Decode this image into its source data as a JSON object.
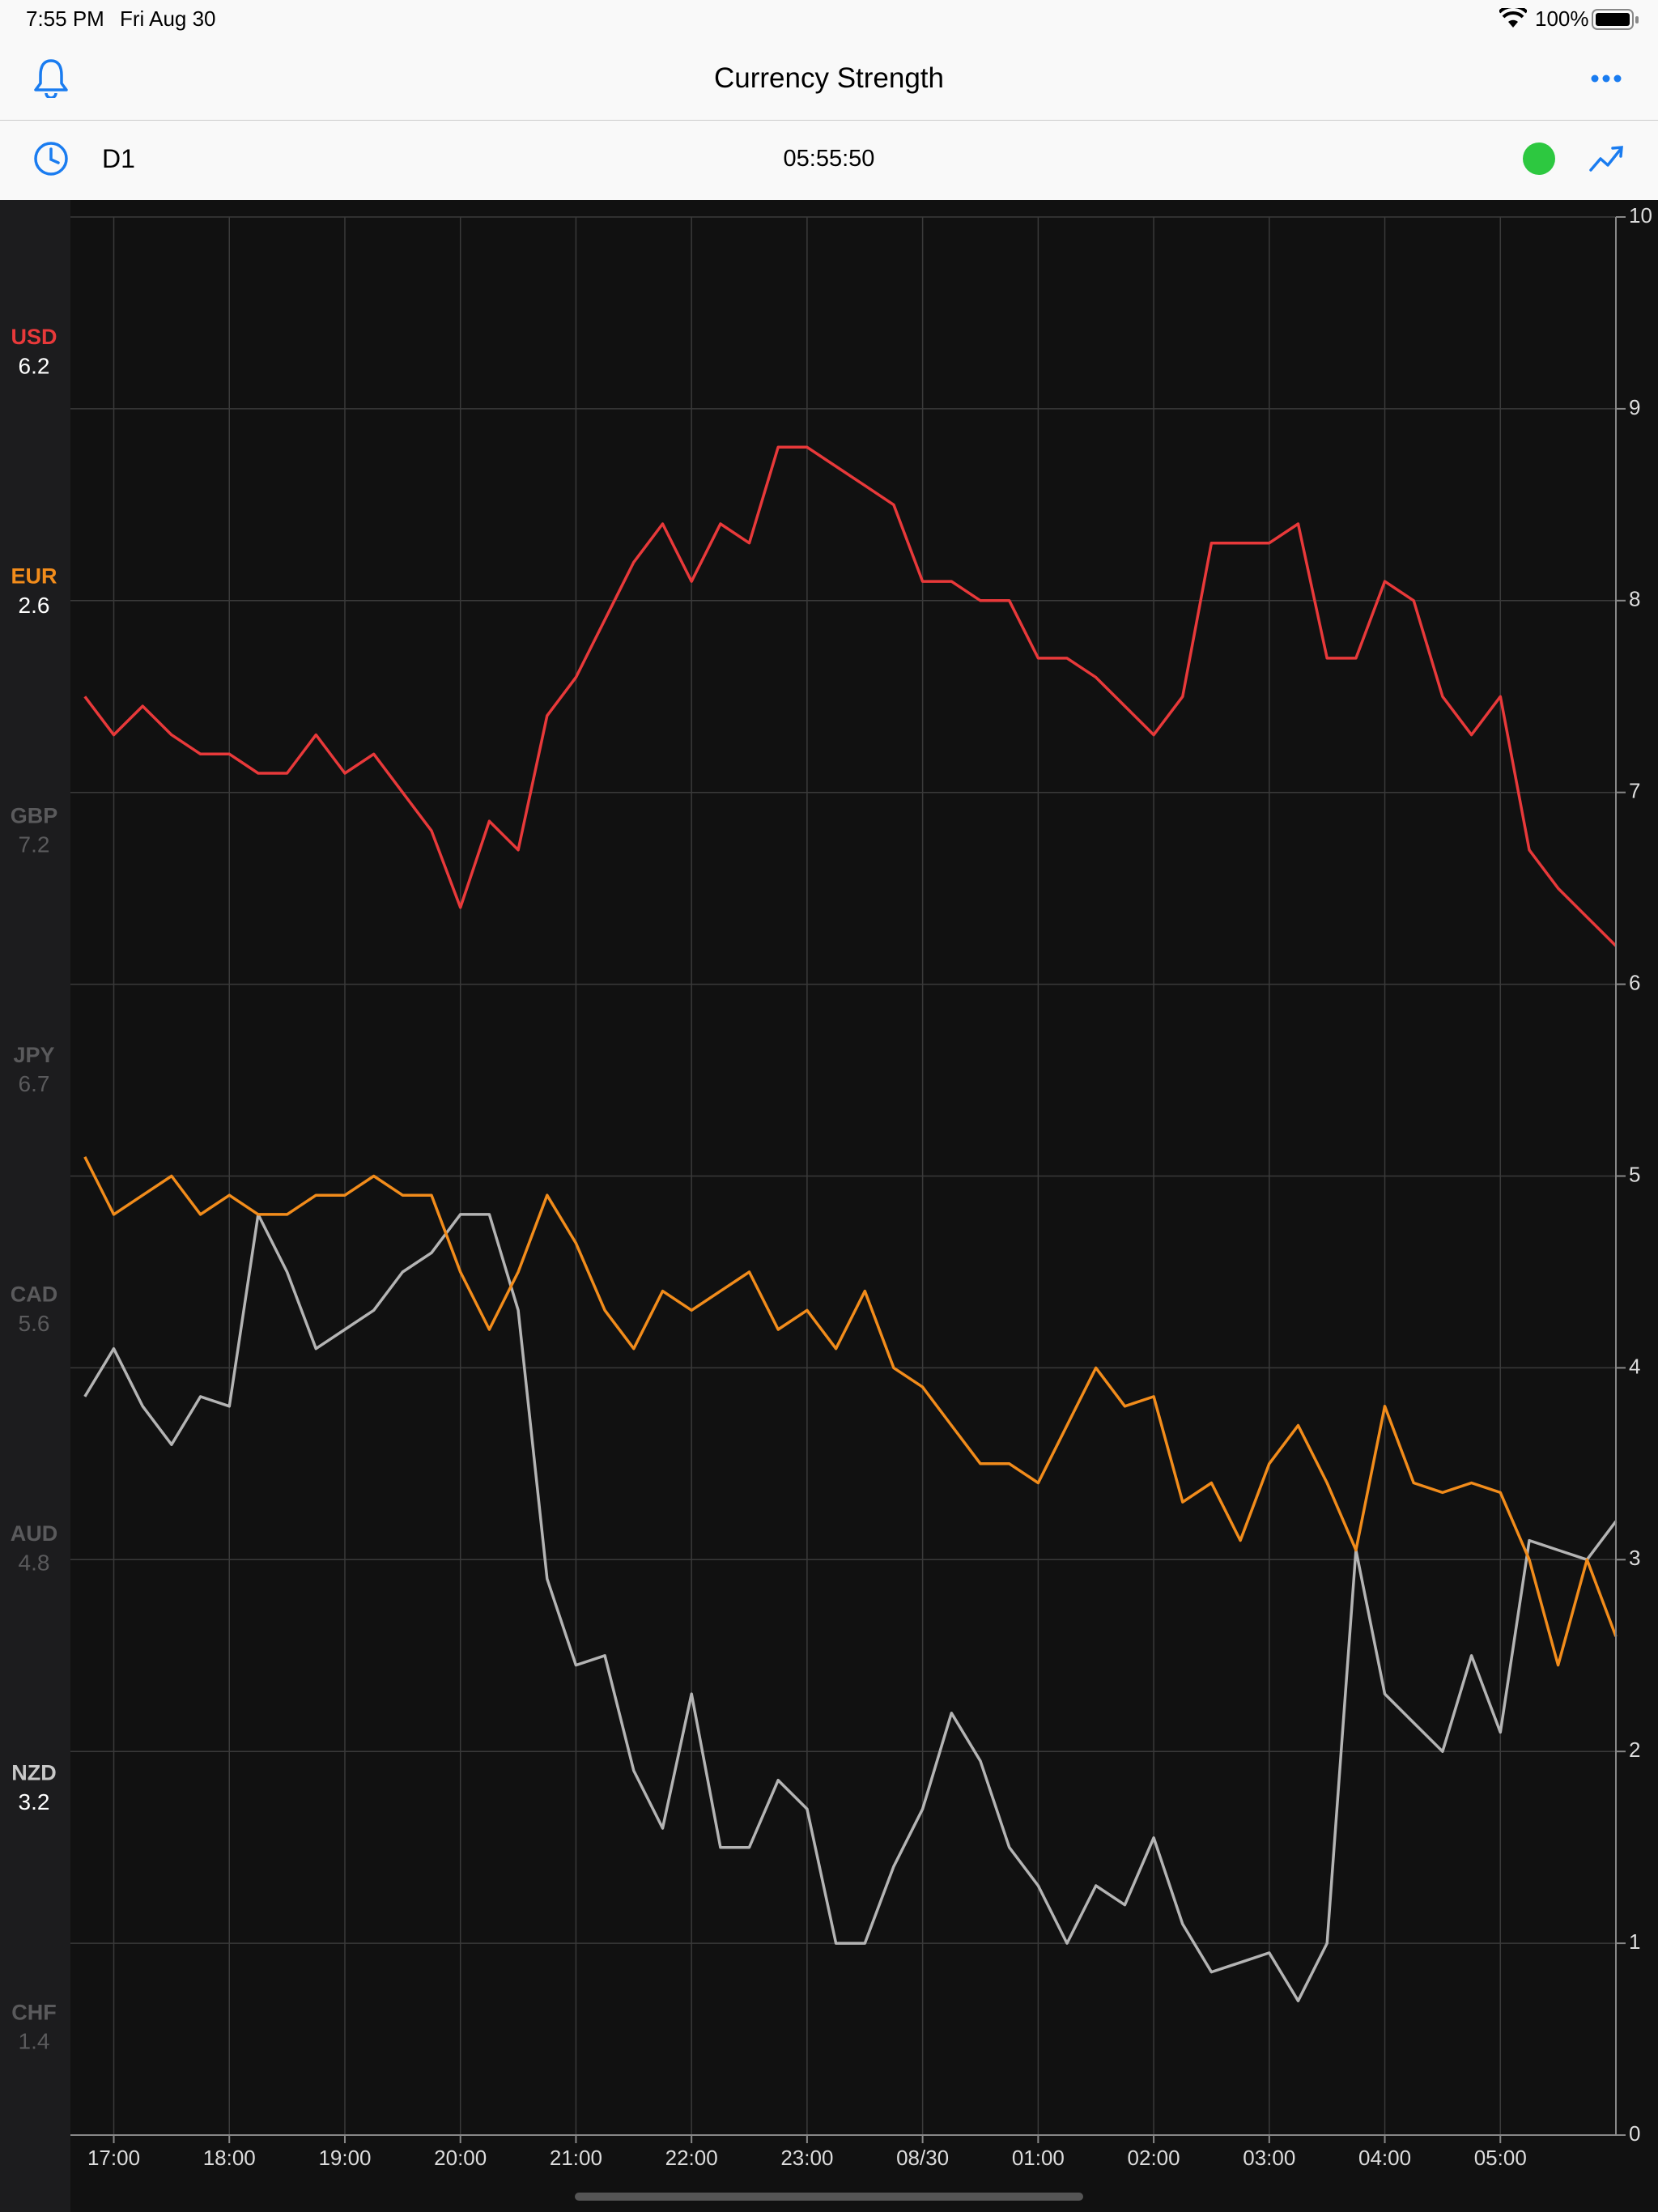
{
  "status_bar": {
    "time": "7:55 PM",
    "date": "Fri Aug 30",
    "battery": "100%"
  },
  "nav": {
    "title": "Currency Strength"
  },
  "toolbar": {
    "timeframe": "D1",
    "countdown": "05:55:50"
  },
  "sidebar": {
    "items": [
      {
        "name": "USD",
        "value": 6.2,
        "active": true,
        "color": "#e8393a"
      },
      {
        "name": "EUR",
        "value": 2.6,
        "active": true,
        "color": "#f28c1b"
      },
      {
        "name": "GBP",
        "value": 7.2,
        "active": false,
        "color": "#5a5a5c"
      },
      {
        "name": "JPY",
        "value": 6.7,
        "active": false,
        "color": "#5a5a5c"
      },
      {
        "name": "CAD",
        "value": 5.6,
        "active": false,
        "color": "#5a5a5c"
      },
      {
        "name": "AUD",
        "value": 4.8,
        "active": false,
        "color": "#5a5a5c"
      },
      {
        "name": "NZD",
        "value": 3.2,
        "active": true,
        "color": "#c8c8c8"
      },
      {
        "name": "CHF",
        "value": 1.4,
        "active": false,
        "color": "#5a5a5c"
      }
    ]
  },
  "chart_data": {
    "type": "line",
    "x": [
      "16:45",
      "17:00",
      "17:15",
      "17:30",
      "17:45",
      "18:00",
      "18:15",
      "18:30",
      "18:45",
      "19:00",
      "19:15",
      "19:30",
      "19:45",
      "20:00",
      "20:15",
      "20:30",
      "20:45",
      "21:00",
      "21:15",
      "21:30",
      "21:45",
      "22:00",
      "22:15",
      "22:30",
      "22:45",
      "23:00",
      "23:15",
      "23:30",
      "23:45",
      "00:00",
      "00:15",
      "00:30",
      "00:45",
      "01:00",
      "01:15",
      "01:30",
      "01:45",
      "02:00",
      "02:15",
      "02:30",
      "02:45",
      "03:00",
      "03:15",
      "03:30",
      "03:45",
      "04:00",
      "04:15",
      "04:30",
      "04:45",
      "05:00",
      "05:15",
      "05:30",
      "05:45",
      "06:00"
    ],
    "series": [
      {
        "name": "USD",
        "color": "#e8393a",
        "values": [
          7.5,
          7.3,
          7.45,
          7.3,
          7.2,
          7.2,
          7.1,
          7.1,
          7.3,
          7.1,
          7.2,
          7.0,
          6.8,
          6.4,
          6.85,
          6.7,
          7.4,
          7.6,
          7.9,
          8.2,
          8.4,
          8.1,
          8.4,
          8.3,
          8.8,
          8.8,
          8.7,
          8.6,
          8.5,
          8.1,
          8.1,
          8.0,
          8.0,
          7.7,
          7.7,
          7.6,
          7.45,
          7.3,
          7.5,
          8.3,
          8.3,
          8.3,
          8.4,
          7.7,
          7.7,
          8.1,
          8.0,
          7.5,
          7.3,
          7.5,
          6.7,
          6.5,
          6.35,
          6.2
        ]
      },
      {
        "name": "EUR",
        "color": "#f28c1b",
        "values": [
          5.1,
          4.8,
          4.9,
          5.0,
          4.8,
          4.9,
          4.8,
          4.8,
          4.9,
          4.9,
          5.0,
          4.9,
          4.9,
          4.5,
          4.2,
          4.5,
          4.9,
          4.65,
          4.3,
          4.1,
          4.4,
          4.3,
          4.4,
          4.5,
          4.2,
          4.3,
          4.1,
          4.4,
          4.0,
          3.9,
          3.7,
          3.5,
          3.5,
          3.4,
          3.7,
          4.0,
          3.8,
          3.85,
          3.3,
          3.4,
          3.1,
          3.5,
          3.7,
          3.4,
          3.05,
          3.8,
          3.4,
          3.35,
          3.4,
          3.35,
          3.0,
          2.45,
          3.0,
          2.6
        ]
      },
      {
        "name": "NZD",
        "color": "#b4b4b4",
        "values": [
          3.85,
          4.1,
          3.8,
          3.6,
          3.85,
          3.8,
          4.8,
          4.5,
          4.1,
          4.2,
          4.3,
          4.5,
          4.6,
          4.8,
          4.8,
          4.3,
          2.9,
          2.45,
          2.5,
          1.9,
          1.6,
          2.3,
          1.5,
          1.5,
          1.85,
          1.7,
          1.0,
          1.0,
          1.4,
          1.7,
          2.2,
          1.95,
          1.5,
          1.3,
          1.0,
          1.3,
          1.2,
          1.55,
          1.1,
          0.85,
          0.9,
          0.95,
          0.7,
          1.0,
          3.05,
          2.3,
          2.15,
          2.0,
          2.5,
          2.1,
          3.1,
          3.05,
          3.0,
          3.2
        ]
      }
    ],
    "ylim": [
      0,
      10
    ],
    "yticks": [
      0,
      1,
      2,
      3,
      4,
      5,
      6,
      7,
      8,
      9,
      10
    ],
    "xticks": [
      "17:00",
      "18:00",
      "19:00",
      "20:00",
      "21:00",
      "22:00",
      "23:00",
      {
        "value": "00:00",
        "label": "08/30"
      },
      "01:00",
      "02:00",
      "03:00",
      "04:00",
      "05:00"
    ],
    "grid": true
  }
}
